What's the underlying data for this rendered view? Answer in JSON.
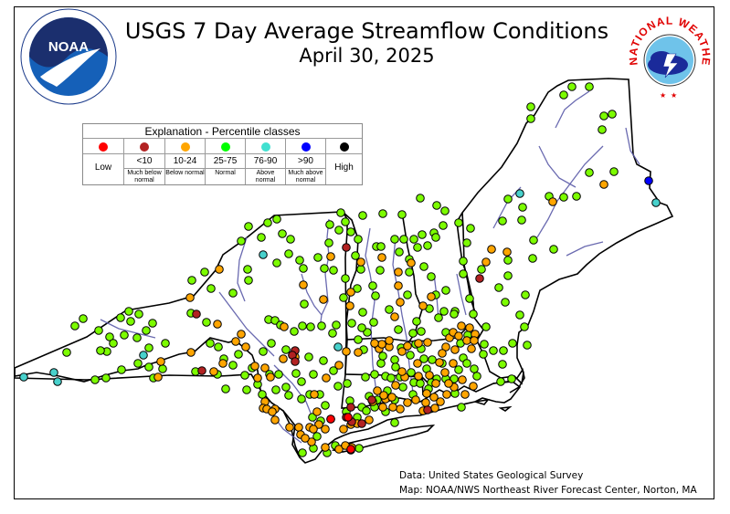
{
  "title": "USGS 7 Day Average Streamflow Conditions",
  "date": "April 30, 2025",
  "credits": {
    "data": "Data: United States Geological Survey",
    "map": "Map: NOAA/NWS Northeast River Forecast Center, Norton, MA"
  },
  "logos": {
    "noaa_text": "NOAA",
    "nws_ring": "NATIONAL WEATHER SERVICE"
  },
  "legend": {
    "title": "Explanation - Percentile classes",
    "classes": [
      {
        "range": "",
        "caption": "",
        "label": "Low",
        "color": "#ff0000"
      },
      {
        "range": "<10",
        "caption": "Much below normal",
        "label": "",
        "color": "#b22222"
      },
      {
        "range": "10-24",
        "caption": "Below normal",
        "label": "",
        "color": "#ffa500"
      },
      {
        "range": "25-75",
        "caption": "Normal",
        "label": "",
        "color": "#00ff00"
      },
      {
        "range": "76-90",
        "caption": "Above normal",
        "label": "",
        "color": "#40e0d0"
      },
      {
        "range": ">90",
        "caption": "Much above normal",
        "label": "",
        "color": "#0000ff"
      },
      {
        "range": "",
        "caption": "",
        "label": "High",
        "color": "#000000"
      }
    ]
  },
  "colors": {
    "normal": "#7cfc00",
    "below": "#ffa500",
    "much_below": "#b22222",
    "above": "#48d1cc",
    "much_above": "#0000ff",
    "low": "#ff0000",
    "rivers": "#5555aa",
    "borders": "#000000"
  },
  "gauges": {
    "normal": [
      [
        626,
        95
      ],
      [
        645,
        95
      ],
      [
        617,
        104
      ],
      [
        581,
        117
      ],
      [
        581,
        130
      ],
      [
        661,
        127
      ],
      [
        670,
        125
      ],
      [
        659,
        142
      ],
      [
        645,
        189
      ],
      [
        672,
        188
      ],
      [
        631,
        215
      ],
      [
        617,
        216
      ],
      [
        601,
        215
      ],
      [
        556,
        218
      ],
      [
        572,
        227
      ],
      [
        571,
        241
      ],
      [
        550,
        242
      ],
      [
        584,
        263
      ],
      [
        515,
        250
      ],
      [
        485,
        247
      ],
      [
        502,
        244
      ],
      [
        487,
        231
      ],
      [
        478,
        225
      ],
      [
        460,
        217
      ],
      [
        440,
        235
      ],
      [
        419,
        234
      ],
      [
        397,
        236
      ],
      [
        373,
        233
      ],
      [
        378,
        243
      ],
      [
        371,
        252
      ],
      [
        384,
        254
      ],
      [
        392,
        262
      ],
      [
        412,
        270
      ],
      [
        417,
        270
      ],
      [
        432,
        262
      ],
      [
        442,
        262
      ],
      [
        437,
        276
      ],
      [
        453,
        262
      ],
      [
        462,
        257
      ],
      [
        475,
        255
      ],
      [
        477,
        260
      ],
      [
        468,
        269
      ],
      [
        448,
        284
      ],
      [
        457,
        271
      ],
      [
        464,
        292
      ],
      [
        472,
        303
      ],
      [
        477,
        323
      ],
      [
        488,
        318
      ],
      [
        486,
        341
      ],
      [
        470,
        338
      ],
      [
        480,
        348
      ],
      [
        498,
        341
      ],
      [
        488,
        364
      ],
      [
        461,
        363
      ],
      [
        456,
        352
      ],
      [
        452,
        365
      ],
      [
        436,
        361
      ],
      [
        426,
        339
      ],
      [
        446,
        323
      ],
      [
        448,
        298
      ],
      [
        416,
        296
      ],
      [
        408,
        313
      ],
      [
        411,
        324
      ],
      [
        391,
        316
      ],
      [
        397,
        342
      ],
      [
        409,
        353
      ],
      [
        398,
        383
      ],
      [
        402,
        364
      ],
      [
        392,
        372
      ],
      [
        385,
        354
      ],
      [
        368,
        356
      ],
      [
        364,
        365
      ],
      [
        352,
        357
      ],
      [
        340,
        358
      ],
      [
        331,
        357
      ],
      [
        294,
        350
      ],
      [
        301,
        351
      ],
      [
        307,
        356
      ],
      [
        322,
        363
      ],
      [
        313,
        383
      ],
      [
        297,
        376
      ],
      [
        288,
        385
      ],
      [
        276,
        403
      ],
      [
        282,
        421
      ],
      [
        268,
        411
      ],
      [
        261,
        388
      ],
      [
        245,
        393
      ],
      [
        239,
        380
      ],
      [
        230,
        376
      ],
      [
        226,
        353
      ],
      [
        209,
        343
      ],
      [
        231,
        316
      ],
      [
        224,
        298
      ],
      [
        210,
        307
      ],
      [
        255,
        321
      ],
      [
        272,
        307
      ],
      [
        271,
        295
      ],
      [
        286,
        260
      ],
      [
        272,
        248
      ],
      [
        264,
        264
      ],
      [
        293,
        244
      ],
      [
        303,
        240
      ],
      [
        309,
        256
      ],
      [
        318,
        262
      ],
      [
        316,
        278
      ],
      [
        303,
        288
      ],
      [
        328,
        285
      ],
      [
        332,
        294
      ],
      [
        355,
        294
      ],
      [
        365,
        296
      ],
      [
        360,
        266
      ],
      [
        348,
        282
      ],
      [
        378,
        305
      ],
      [
        376,
        326
      ],
      [
        395,
        295
      ],
      [
        389,
        280
      ],
      [
        361,
        246
      ],
      [
        333,
        333
      ],
      [
        167,
        354
      ],
      [
        160,
        362
      ],
      [
        143,
        352
      ],
      [
        141,
        341
      ],
      [
        152,
        344
      ],
      [
        132,
        348
      ],
      [
        108,
        362
      ],
      [
        91,
        349
      ],
      [
        82,
        357
      ],
      [
        120,
        369
      ],
      [
        124,
        376
      ],
      [
        117,
        385
      ],
      [
        110,
        384
      ],
      [
        136,
        367
      ],
      [
        150,
        370
      ],
      [
        163,
        381
      ],
      [
        181,
        376
      ],
      [
        151,
        398
      ],
      [
        163,
        402
      ],
      [
        168,
        414
      ],
      [
        178,
        404
      ],
      [
        133,
        405
      ],
      [
        116,
        414
      ],
      [
        104,
        416
      ],
      [
        73,
        386
      ],
      [
        214,
        407
      ],
      [
        238,
        410
      ],
      [
        255,
        400
      ],
      [
        247,
        426
      ],
      [
        270,
        427
      ],
      [
        287,
        432
      ],
      [
        295,
        410
      ],
      [
        305,
        410
      ],
      [
        324,
        409
      ],
      [
        330,
        418
      ],
      [
        313,
        424
      ],
      [
        302,
        427
      ],
      [
        316,
        433
      ],
      [
        330,
        437
      ],
      [
        339,
        432
      ],
      [
        350,
        432
      ],
      [
        343,
        410
      ],
      [
        338,
        391
      ],
      [
        354,
        395
      ],
      [
        365,
        406
      ],
      [
        370,
        423
      ],
      [
        380,
        420
      ],
      [
        383,
        439
      ],
      [
        396,
        446
      ],
      [
        404,
        434
      ],
      [
        400,
        413
      ],
      [
        410,
        410
      ],
      [
        417,
        398
      ],
      [
        422,
        412
      ],
      [
        432,
        394
      ],
      [
        439,
        381
      ],
      [
        455,
        377
      ],
      [
        461,
        382
      ],
      [
        464,
        393
      ],
      [
        467,
        404
      ],
      [
        473,
        394
      ],
      [
        449,
        389
      ],
      [
        433,
        402
      ],
      [
        428,
        414
      ],
      [
        438,
        413
      ],
      [
        450,
        408
      ],
      [
        453,
        419
      ],
      [
        460,
        420
      ],
      [
        441,
        424
      ],
      [
        452,
        432
      ],
      [
        432,
        438
      ],
      [
        410,
        446
      ],
      [
        422,
        451
      ],
      [
        432,
        463
      ],
      [
        424,
        428
      ],
      [
        413,
        438
      ],
      [
        401,
        450
      ],
      [
        391,
        457
      ],
      [
        379,
        451
      ],
      [
        356,
        444
      ],
      [
        351,
        461
      ],
      [
        342,
        457
      ],
      [
        347,
        478
      ],
      [
        331,
        496
      ],
      [
        367,
        488
      ],
      [
        393,
        491
      ],
      [
        358,
        496
      ],
      [
        343,
        491
      ],
      [
        396,
        359
      ],
      [
        413,
        378
      ],
      [
        419,
        390
      ],
      [
        484,
        398
      ],
      [
        507,
        392
      ],
      [
        511,
        398
      ],
      [
        512,
        367
      ],
      [
        522,
        412
      ],
      [
        540,
        384
      ],
      [
        551,
        384
      ],
      [
        550,
        399
      ],
      [
        548,
        418
      ],
      [
        560,
        415
      ],
      [
        519,
        404
      ],
      [
        502,
        405
      ],
      [
        497,
        415
      ],
      [
        478,
        415
      ],
      [
        472,
        419
      ],
      [
        469,
        426
      ],
      [
        505,
        446
      ],
      [
        498,
        431
      ],
      [
        488,
        415
      ],
      [
        518,
        344
      ],
      [
        514,
        327
      ],
      [
        507,
        300
      ],
      [
        507,
        286
      ],
      [
        511,
        266
      ],
      [
        527,
        295
      ],
      [
        546,
        315
      ],
      [
        553,
        331
      ],
      [
        569,
        345
      ],
      [
        575,
        323
      ],
      [
        556,
        302
      ],
      [
        556,
        285
      ],
      [
        583,
        283
      ],
      [
        606,
        273
      ],
      [
        574,
        358
      ],
      [
        577,
        378
      ],
      [
        561,
        376
      ],
      [
        532,
        358
      ],
      [
        530,
        377
      ],
      [
        529,
        388
      ],
      [
        504,
        376
      ],
      [
        497,
        344
      ]
    ],
    "below": [
      [
        605,
        221
      ],
      [
        661,
        202
      ],
      [
        538,
        273
      ],
      [
        555,
        276
      ],
      [
        532,
        287
      ],
      [
        450,
        288
      ],
      [
        436,
        298
      ],
      [
        418,
        282
      ],
      [
        395,
        287
      ],
      [
        362,
        281
      ],
      [
        332,
        312
      ],
      [
        354,
        328
      ],
      [
        383,
        335
      ],
      [
        384,
        320
      ],
      [
        436,
        313
      ],
      [
        438,
        331
      ],
      [
        432,
        347
      ],
      [
        472,
        325
      ],
      [
        463,
        335
      ],
      [
        488,
        380
      ],
      [
        492,
        370
      ],
      [
        496,
        364
      ],
      [
        502,
        368
      ],
      [
        511,
        373
      ],
      [
        516,
        382
      ],
      [
        498,
        383
      ],
      [
        496,
        398
      ],
      [
        506,
        416
      ],
      [
        518,
        423
      ],
      [
        509,
        432
      ],
      [
        497,
        424
      ],
      [
        489,
        432
      ],
      [
        482,
        440
      ],
      [
        475,
        435
      ],
      [
        467,
        431
      ],
      [
        477,
        420
      ],
      [
        491,
        420
      ],
      [
        466,
        441
      ],
      [
        455,
        438
      ],
      [
        446,
        441
      ],
      [
        438,
        448
      ],
      [
        463,
        450
      ],
      [
        476,
        447
      ],
      [
        457,
        398
      ],
      [
        440,
        385
      ],
      [
        426,
        380
      ],
      [
        415,
        382
      ],
      [
        392,
        386
      ],
      [
        379,
        385
      ],
      [
        371,
        400
      ],
      [
        357,
        414
      ],
      [
        323,
        391
      ],
      [
        296,
        413
      ],
      [
        290,
        403
      ],
      [
        282,
        414
      ],
      [
        279,
        401
      ],
      [
        269,
        380
      ],
      [
        264,
        366
      ],
      [
        238,
        355
      ],
      [
        311,
        358
      ],
      [
        320,
        389
      ],
      [
        310,
        393
      ],
      [
        344,
        432
      ],
      [
        347,
        451
      ],
      [
        356,
        470
      ],
      [
        349,
        465
      ],
      [
        339,
        468
      ],
      [
        343,
        470
      ],
      [
        327,
        468
      ],
      [
        329,
        476
      ],
      [
        341,
        484
      ],
      [
        376,
        470
      ],
      [
        384,
        465
      ],
      [
        391,
        464
      ],
      [
        404,
        460
      ],
      [
        408,
        440
      ],
      [
        419,
        446
      ],
      [
        430,
        446
      ],
      [
        422,
        437
      ],
      [
        433,
        422
      ],
      [
        443,
        413
      ],
      [
        440,
        407
      ],
      [
        209,
        386
      ],
      [
        234,
        407
      ],
      [
        244,
        398
      ],
      [
        258,
        374
      ],
      [
        240,
        295
      ],
      [
        208,
        326
      ],
      [
        176,
        396
      ],
      [
        173,
        413
      ],
      [
        520,
        366
      ],
      [
        514,
        359
      ],
      [
        519,
        373
      ],
      [
        505,
        357
      ],
      [
        487,
        408
      ],
      [
        470,
        411
      ],
      [
        484,
        387
      ],
      [
        481,
        397
      ],
      [
        458,
        412
      ],
      [
        468,
        375
      ],
      [
        458,
        376
      ],
      [
        446,
        379
      ],
      [
        426,
        373
      ],
      [
        418,
        377
      ],
      [
        410,
        376
      ],
      [
        420,
        433
      ],
      [
        413,
        428
      ],
      [
        429,
        435
      ],
      [
        385,
        490
      ],
      [
        356,
        490
      ],
      [
        371,
        492
      ],
      [
        378,
        488
      ],
      [
        334,
        480
      ],
      [
        317,
        468
      ],
      [
        301,
        448
      ],
      [
        290,
        440
      ],
      [
        288,
        447
      ],
      [
        292,
        448
      ],
      [
        298,
        451
      ],
      [
        301,
        460
      ]
    ],
    "much_below": [
      [
        379,
        271
      ],
      [
        215,
        344
      ],
      [
        323,
        384
      ],
      [
        320,
        389
      ],
      [
        323,
        396
      ],
      [
        221,
        406
      ],
      [
        525,
        305
      ],
      [
        407,
        438
      ],
      [
        468,
        449
      ],
      [
        384,
        446
      ],
      [
        379,
        457
      ],
      [
        385,
        462
      ],
      [
        396,
        464
      ],
      [
        362,
        459
      ],
      [
        384,
        493
      ]
    ],
    "above": [
      [
        569,
        212
      ],
      [
        718,
        222
      ],
      [
        288,
        279
      ],
      [
        157,
        389
      ],
      [
        370,
        380
      ],
      [
        26,
        413
      ],
      [
        59,
        408
      ],
      [
        63,
        418
      ]
    ],
    "much_above": [
      [
        710,
        198
      ]
    ],
    "low": [
      [
        384,
        492
      ],
      [
        362,
        459
      ],
      [
        381,
        457
      ]
    ]
  }
}
